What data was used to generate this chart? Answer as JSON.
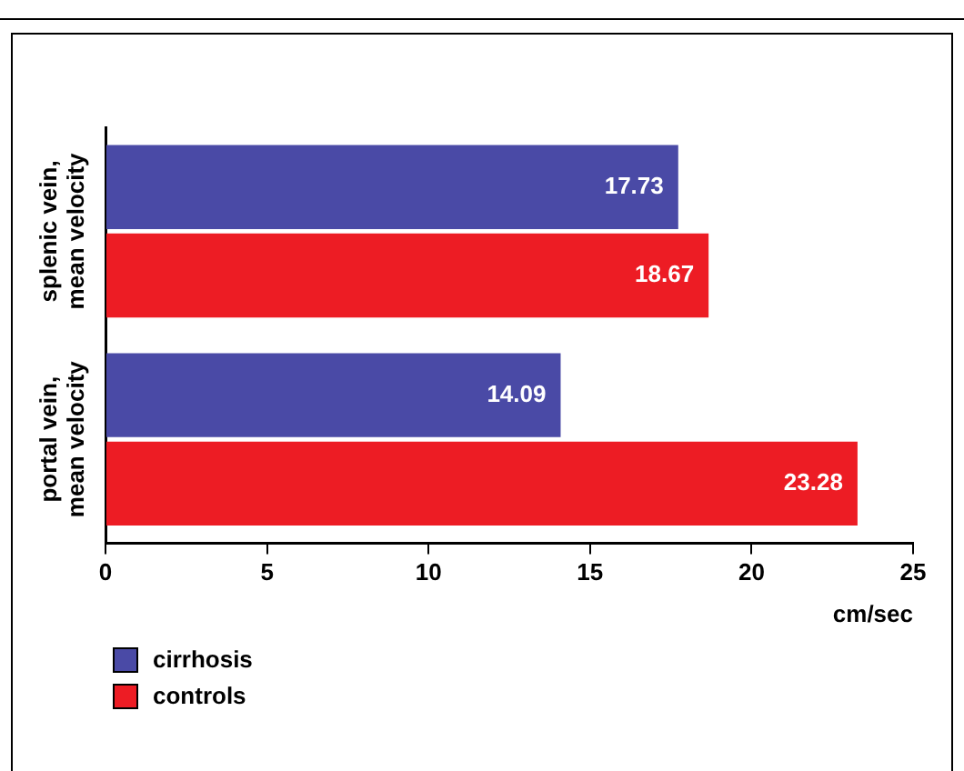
{
  "chart_data": {
    "type": "bar",
    "orientation": "horizontal",
    "xlabel": "cm/sec",
    "categories": [
      "splenic vein,\nmean velocity",
      "portal vein,\nmean velocity"
    ],
    "series": [
      {
        "name": "cirrhosis",
        "color": "#4a4aa6",
        "values": [
          17.73,
          14.09
        ]
      },
      {
        "name": "controls",
        "color": "#ed1c24",
        "values": [
          18.67,
          23.28
        ]
      }
    ],
    "xlim": [
      0,
      25
    ],
    "xticks": [
      0,
      5,
      10,
      15,
      20,
      25
    ],
    "data_labels": true,
    "grid": false,
    "legend": "bottom left"
  }
}
